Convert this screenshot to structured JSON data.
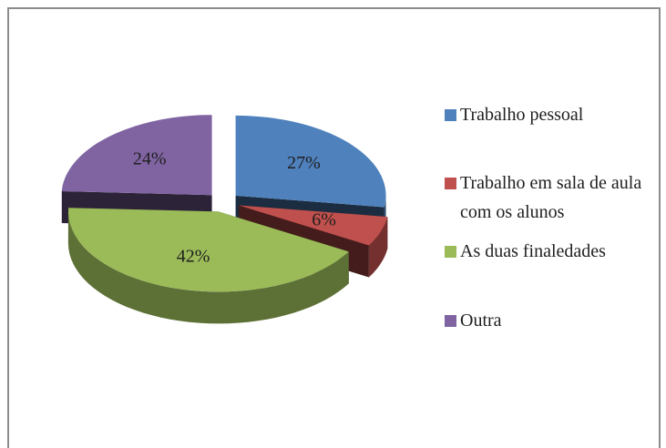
{
  "chart_data": {
    "type": "pie3d",
    "categories": [
      "Trabalho pessoal",
      "Trabalho em sala de aula com os alunos",
      "As duas finaledades",
      "Outra"
    ],
    "values": [
      27,
      6,
      42,
      24
    ],
    "value_labels": [
      "27%",
      "6%",
      "42%",
      "24%"
    ],
    "colors": [
      "#4f81bd",
      "#c0504d",
      "#9bbb59",
      "#8064a2"
    ],
    "legend": "right"
  }
}
